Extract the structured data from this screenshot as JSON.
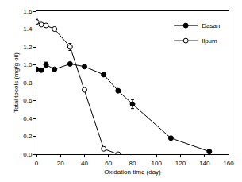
{
  "chart_data": {
    "type": "line",
    "x_label": "Oxidation time (day)",
    "y_label": "Total tocols (mg/g oil)",
    "xlim": [
      0,
      160
    ],
    "xticks": [
      0,
      20,
      40,
      60,
      80,
      100,
      120,
      140,
      160
    ],
    "ylim": [
      0,
      1.6
    ],
    "yticks": [
      {
        "value": 0,
        "label": "0.0"
      },
      {
        "value": 0.2,
        "label": "0.2"
      },
      {
        "value": 0.4,
        "label": "0.4"
      },
      {
        "value": 0.6,
        "label": "0.6"
      },
      {
        "value": 0.8,
        "label": "0.8"
      },
      {
        "value": 1,
        "label": "1.0"
      },
      {
        "value": 1.2,
        "label": "1.2"
      },
      {
        "value": 1.4,
        "label": "1.4"
      },
      {
        "value": 1.6,
        "label": "1.6"
      }
    ],
    "grid": false,
    "legend": "top right",
    "series": [
      {
        "name": "Dasan",
        "color": "#000000",
        "marker": "filled circle",
        "x": [
          0,
          4,
          8,
          15,
          28,
          40,
          56,
          68,
          80,
          112,
          144
        ],
        "values": [
          0.95,
          0.94,
          1.0,
          0.95,
          1.01,
          0.98,
          0.89,
          0.71,
          0.56,
          0.18,
          0.03
        ],
        "errors": [
          0.02,
          0.01,
          0.03,
          0.01,
          0.01,
          0.01,
          0.01,
          0.01,
          0.05,
          0.01,
          0.01
        ]
      },
      {
        "name": "Ilpum",
        "color": "#000000",
        "marker": "open circle",
        "x": [
          0,
          4,
          8,
          15,
          28,
          40,
          56,
          68
        ],
        "values": [
          1.48,
          1.45,
          1.44,
          1.4,
          1.2,
          0.72,
          0.06,
          0.0
        ],
        "errors": [
          0.03,
          0.01,
          0.01,
          0.02,
          0.04,
          0.01,
          0.01,
          0.0
        ]
      }
    ]
  }
}
